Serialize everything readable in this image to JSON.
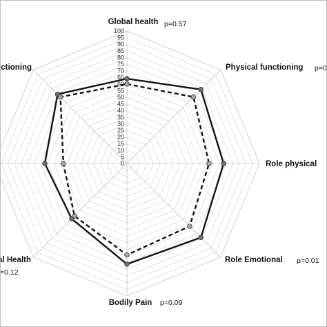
{
  "chart_data": {
    "type": "radar",
    "categories": [
      "Global health",
      "Physical functioning",
      "Role physical",
      "Role Emotional",
      "Bodily Pain",
      "al Health",
      "",
      "nctioning"
    ],
    "p_values": [
      "p=0.57",
      "p=0",
      "",
      "p=0.01",
      "p=0.09",
      "=0.12",
      "",
      ""
    ],
    "radial_ticks": [
      0,
      5,
      10,
      15,
      20,
      25,
      30,
      35,
      40,
      45,
      50,
      55,
      60,
      65,
      70,
      75,
      80,
      85,
      90,
      95,
      100
    ],
    "range": [
      0,
      100
    ],
    "series": [
      {
        "values": [
          64,
          79,
          73,
          79,
          76,
          59,
          62,
          74
        ],
        "line_style": "solid",
        "color": "#111111",
        "marker_color": "#707070"
      },
      {
        "values": [
          60,
          71,
          62,
          67,
          69,
          56,
          48,
          71
        ],
        "line_style": "dashed",
        "color": "#111111",
        "marker_color": "#a8a8a8"
      }
    ],
    "grid": true
  }
}
